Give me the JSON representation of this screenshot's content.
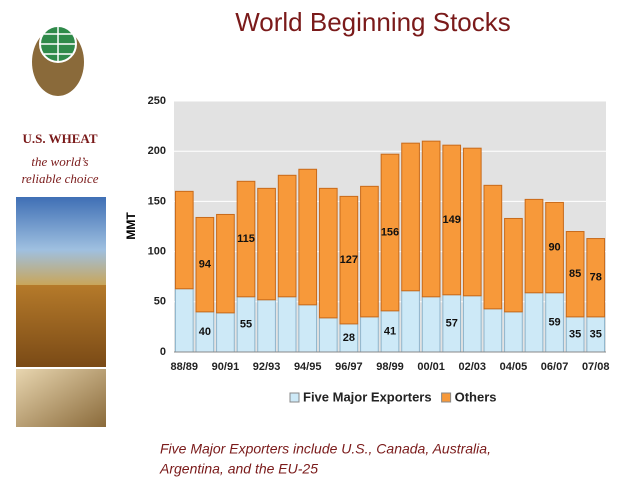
{
  "chart_data": {
    "type": "stacked_bar",
    "title": "World Beginning Stocks",
    "y_label": "MMT",
    "categories": [
      "88/89",
      null,
      "90/91",
      null,
      "92/93",
      null,
      "94/95",
      null,
      "96/97",
      null,
      "98/99",
      null,
      "00/01",
      null,
      "02/03",
      null,
      "04/05",
      null,
      "06/07",
      null,
      "07/08"
    ],
    "series": [
      {
        "name": "Five Major Exporters",
        "color": "#cde9f7",
        "values": [
          63,
          40,
          39,
          55,
          52,
          55,
          47,
          34,
          28,
          35,
          41,
          61,
          55,
          57,
          56,
          43,
          40,
          59,
          59,
          35,
          35
        ],
        "value_labels": [
          null,
          "40",
          null,
          "55",
          null,
          null,
          null,
          null,
          "28",
          null,
          "41",
          null,
          null,
          "57",
          null,
          null,
          null,
          null,
          "59",
          "35",
          "35"
        ]
      },
      {
        "name": "Others",
        "color": "#f7993a",
        "values": [
          97,
          94,
          98,
          115,
          111,
          121,
          135,
          129,
          127,
          130,
          156,
          147,
          155,
          149,
          147,
          123,
          93,
          93,
          90,
          85,
          78
        ],
        "value_labels": [
          null,
          "94",
          null,
          "115",
          null,
          null,
          null,
          null,
          "127",
          null,
          "156",
          null,
          null,
          "149",
          null,
          null,
          null,
          null,
          "90",
          "85",
          "78"
        ]
      }
    ],
    "ylim": [
      0,
      250
    ],
    "yticks": [
      0,
      50,
      100,
      150,
      200,
      250
    ],
    "grid": true,
    "legend": "bottom"
  },
  "logo": {
    "name": "U.S. WHEAT",
    "tagline": [
      "the world’s",
      "reliable choice"
    ]
  },
  "footnote": [
    "Five Major Exporters include U.S., Canada, Australia,",
    "Argentina, and the EU-25"
  ]
}
